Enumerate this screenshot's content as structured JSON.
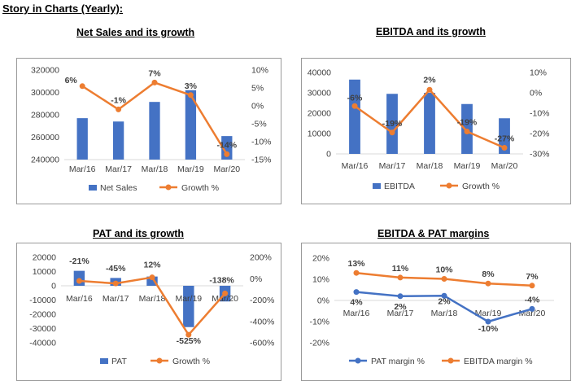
{
  "page_title": "Story in Charts (Yearly):",
  "colors": {
    "bar": "#4472C4",
    "line_orange": "#ED7D31",
    "line_blue": "#4472C4",
    "axis": "#d9d9d9",
    "text": "#595959"
  },
  "chart_data": [
    {
      "type": "bar",
      "title": "Net Sales and its growth",
      "categories": [
        "Mar/16",
        "Mar/17",
        "Mar/18",
        "Mar/19",
        "Mar/20"
      ],
      "series": [
        {
          "name": "Net Sales",
          "kind": "bar",
          "axis": "left",
          "values": [
            277000,
            274000,
            291500,
            302000,
            261000
          ]
        },
        {
          "name": "Growth %",
          "kind": "line",
          "axis": "right",
          "values": [
            5.5,
            -1,
            6.5,
            3,
            -13.5
          ],
          "labels": [
            "6%",
            "-1%",
            "7%",
            "3%",
            "-14%"
          ]
        }
      ],
      "y_left": {
        "min": 240000,
        "max": 320000,
        "step": 20000,
        "ticks": [
          "240000",
          "260000",
          "280000",
          "300000",
          "320000"
        ]
      },
      "y_right": {
        "min": -15,
        "max": 10,
        "step": 5,
        "ticks": [
          "-15%",
          "-10%",
          "-5%",
          "0%",
          "5%",
          "10%"
        ]
      },
      "legend_position": "bottom"
    },
    {
      "type": "bar",
      "title": "EBITDA and its growth",
      "categories": [
        "Mar/16",
        "Mar/17",
        "Mar/18",
        "Mar/19",
        "Mar/20"
      ],
      "series": [
        {
          "name": "EBITDA",
          "kind": "bar",
          "axis": "left",
          "values": [
            36500,
            29500,
            30000,
            24500,
            17500
          ]
        },
        {
          "name": "Growth %",
          "kind": "line",
          "axis": "right",
          "values": [
            -6.5,
            -19.5,
            1.5,
            -19,
            -27
          ],
          "labels": [
            "-6%",
            "-19%",
            "2%",
            "-19%",
            "-27%"
          ]
        }
      ],
      "y_left": {
        "min": 0,
        "max": 40000,
        "step": 10000,
        "ticks": [
          "0",
          "10000",
          "20000",
          "30000",
          "40000"
        ]
      },
      "y_right": {
        "min": -30,
        "max": 10,
        "step": 10,
        "ticks": [
          "-30%",
          "-20%",
          "-10%",
          "0%",
          "10%"
        ]
      },
      "legend_position": "bottom"
    },
    {
      "type": "bar",
      "title": "PAT and its growth",
      "categories": [
        "Mar/16",
        "Mar/17",
        "Mar/18",
        "Mar/19",
        "Mar/20"
      ],
      "series": [
        {
          "name": "PAT",
          "kind": "bar",
          "axis": "left",
          "values": [
            10500,
            5500,
            6500,
            -29000,
            -11000
          ]
        },
        {
          "name": "Growth %",
          "kind": "line",
          "axis": "right",
          "values": [
            -21,
            -45,
            12,
            -525,
            -138
          ],
          "labels": [
            "-21%",
            "-45%",
            "12%",
            "-525%",
            "-138%"
          ]
        }
      ],
      "y_left": {
        "min": -40000,
        "max": 20000,
        "step": 10000,
        "ticks": [
          "-40000",
          "-30000",
          "-20000",
          "-10000",
          "0",
          "10000",
          "20000"
        ]
      },
      "y_right": {
        "min": -600,
        "max": 200,
        "step": 200,
        "ticks": [
          "-600%",
          "-400%",
          "-200%",
          "0%",
          "200%"
        ]
      },
      "legend_position": "bottom"
    },
    {
      "type": "line",
      "title": "EBITDA & PAT margins",
      "categories": [
        "Mar/16",
        "Mar/17",
        "Mar/18",
        "Mar/19",
        "Mar/20"
      ],
      "series": [
        {
          "name": "PAT margin %",
          "kind": "line",
          "axis": "left",
          "color": "blue",
          "values": [
            4,
            2,
            2.2,
            -10,
            -4
          ],
          "labels": [
            "4%",
            "2%",
            "2%",
            "-10%",
            "-4%"
          ]
        },
        {
          "name": "EBITDA margin %",
          "kind": "line",
          "axis": "left",
          "color": "orange",
          "values": [
            13,
            10.8,
            10.2,
            8,
            7
          ],
          "labels": [
            "13%",
            "11%",
            "10%",
            "8%",
            "7%"
          ]
        }
      ],
      "y_left": {
        "min": -20,
        "max": 20,
        "step": 10,
        "ticks": [
          "-20%",
          "-10%",
          "0%",
          "10%",
          "20%"
        ]
      },
      "legend_position": "bottom"
    }
  ]
}
